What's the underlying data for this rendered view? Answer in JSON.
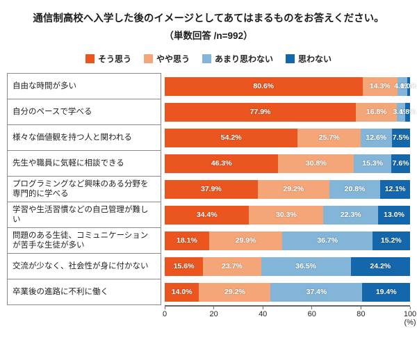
{
  "title": {
    "line1": "通信制高校へ入学した後のイメージとしてあてはまるものをお答えください。",
    "line2": "（単数回答 /n=992）"
  },
  "chart_data": {
    "type": "bar",
    "orientation": "horizontal-stacked",
    "title": "通信制高校へ入学した後のイメージとしてあてはまるものをお答えください。（単数回答 /n=992）",
    "categories": [
      "自由な時間が多い",
      "自分のペースで学べる",
      "様々な価値観を持つ人と関われる",
      "先生や職員に気軽に相談できる",
      "プログラミングなど興味のある分野を専門的に学べる",
      "学習や生活習慣などの自己管理が難しい",
      "問題のある生徒、コミュニケーションが苦手な生徒が多い",
      "交流が少なく、社会性が身に付かない",
      "卒業後の進路に不利に働く"
    ],
    "series": [
      {
        "name": "そう思う",
        "color": "#ea5520",
        "values": [
          80.6,
          77.9,
          54.2,
          46.3,
          37.9,
          34.4,
          18.1,
          15.6,
          14.0
        ]
      },
      {
        "name": "やや思う",
        "color": "#f4a679",
        "values": [
          14.3,
          16.8,
          25.7,
          30.8,
          29.2,
          30.3,
          29.9,
          23.7,
          29.2
        ]
      },
      {
        "name": "あまり思わない",
        "color": "#82b5d8",
        "values": [
          4.0,
          3.4,
          12.6,
          15.3,
          20.8,
          22.3,
          36.7,
          36.5,
          37.4
        ]
      },
      {
        "name": "思わない",
        "color": "#1567ac",
        "values": [
          1.0,
          1.8,
          7.5,
          7.6,
          12.1,
          13.0,
          15.2,
          24.2,
          19.4
        ]
      }
    ],
    "x_ticks": [
      "0",
      "20",
      "40",
      "60",
      "80",
      "100"
    ],
    "x_unit": "(%)",
    "xlim": [
      0,
      100
    ],
    "legend_position": "top",
    "grid": false
  }
}
